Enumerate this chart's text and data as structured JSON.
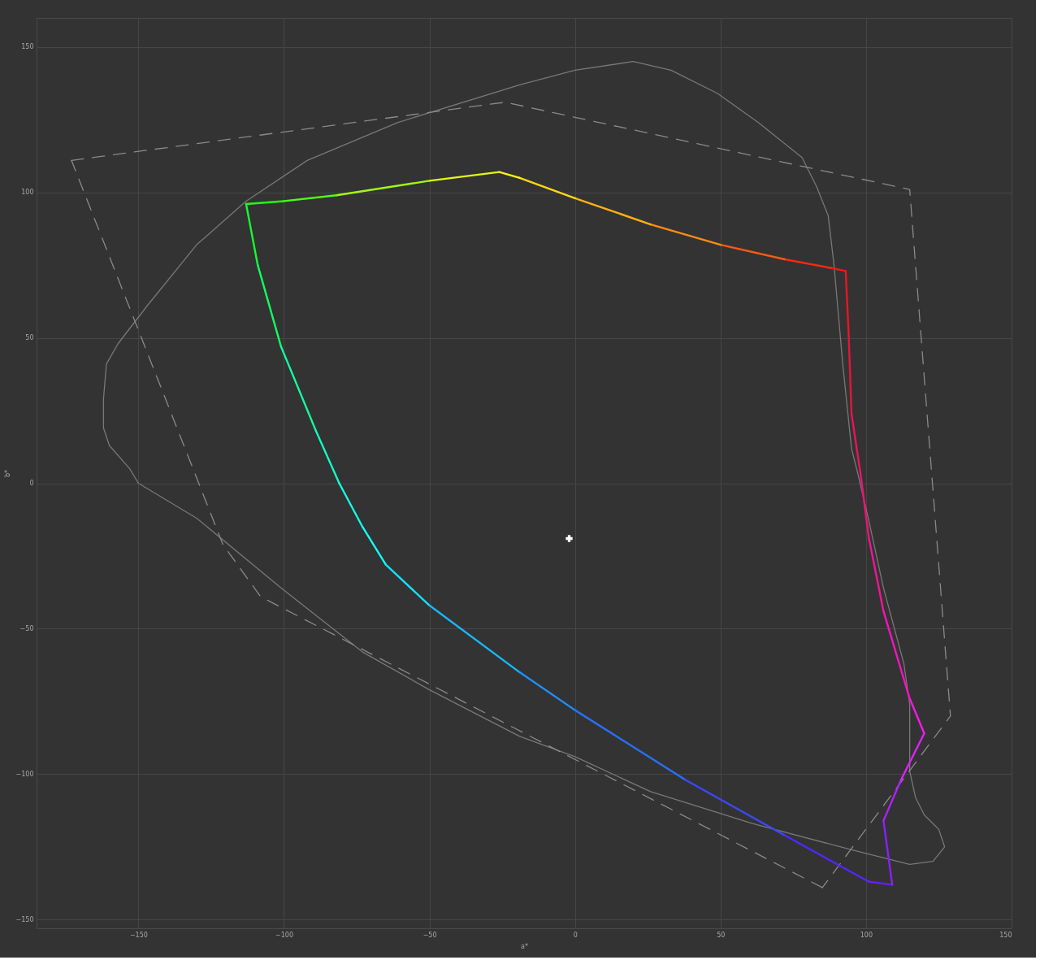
{
  "chart_data": {
    "type": "line",
    "xlabel": "a*",
    "ylabel": "b*",
    "xlim": [
      -185,
      150
    ],
    "ylim": [
      -153,
      160
    ],
    "xticks": [
      -150,
      -100,
      -50,
      0,
      50,
      100,
      150
    ],
    "yticks": [
      -150,
      -100,
      -50,
      0,
      50,
      100,
      150
    ],
    "grid": true,
    "series": [
      {
        "color": "#787878",
        "line_style": "solid",
        "x": [
          20,
          0,
          -19,
          -61,
          -92,
          -113,
          -130,
          -147,
          -157,
          -161,
          -162,
          -162,
          -160,
          -153,
          -150
        ],
        "values": [
          145,
          142,
          137,
          124,
          111,
          97,
          82,
          61,
          48,
          41,
          29,
          19,
          13,
          5,
          0
        ]
      },
      {
        "color": "#787878",
        "line_style": "solid",
        "x": [
          -150,
          -130,
          -101,
          -73,
          -50,
          -19,
          0,
          26,
          61,
          95,
          115,
          123,
          127,
          125,
          120,
          117,
          115,
          115,
          113,
          106,
          101,
          97,
          95,
          92,
          89,
          87,
          83,
          78,
          63,
          49,
          33,
          20
        ],
        "values": [
          0,
          -12,
          -36,
          -58,
          -71,
          -87,
          -94,
          -106,
          -117,
          -126,
          -131,
          -130,
          -125,
          -119,
          -114,
          -108,
          -99,
          -76,
          -62,
          -36,
          -13,
          4,
          12,
          41,
          75,
          92,
          102,
          112,
          124,
          134,
          142,
          145
        ]
      },
      {
        "color": "#8a8a8a",
        "line_style": "dashed",
        "x": [
          -173,
          -24,
          115,
          129,
          85
        ],
        "values": [
          111,
          131,
          101,
          -80,
          -139
        ]
      },
      {
        "color": "#8a8a8a",
        "line_style": "dashed",
        "x": [
          85,
          -108,
          -121,
          -173
        ],
        "values": [
          -139,
          -39,
          -21,
          111
        ]
      },
      {
        "color": "#f01818",
        "x": [
          93,
          88
        ],
        "values": [
          73,
          74
        ]
      },
      {
        "color": "#f42a14",
        "x": [
          88,
          72
        ],
        "values": [
          74,
          77
        ]
      },
      {
        "color": "#f85a14",
        "x": [
          72,
          50
        ],
        "values": [
          77,
          82
        ]
      },
      {
        "color": "#fc8c14",
        "x": [
          50,
          26
        ],
        "values": [
          82,
          89
        ]
      },
      {
        "color": "#ffb014",
        "x": [
          26,
          0
        ],
        "values": [
          89,
          98
        ]
      },
      {
        "color": "#ffd814",
        "x": [
          0,
          -19
        ],
        "values": [
          98,
          105
        ]
      },
      {
        "color": "#fff514",
        "x": [
          -19,
          -26
        ],
        "values": [
          105,
          107
        ]
      },
      {
        "color": "#e0f814",
        "x": [
          -26,
          -50
        ],
        "values": [
          107,
          104
        ]
      },
      {
        "color": "#a0fa14",
        "x": [
          -50,
          -82
        ],
        "values": [
          104,
          99
        ]
      },
      {
        "color": "#50fc14",
        "x": [
          -82,
          -100
        ],
        "values": [
          99,
          97
        ]
      },
      {
        "color": "#20fc14",
        "x": [
          -100,
          -113
        ],
        "values": [
          97,
          96
        ]
      },
      {
        "color": "#14fc30",
        "x": [
          -113,
          -109
        ],
        "values": [
          96,
          75
        ]
      },
      {
        "color": "#14fc60",
        "x": [
          -109,
          -101
        ],
        "values": [
          75,
          47
        ]
      },
      {
        "color": "#14fca0",
        "x": [
          -101,
          -89
        ],
        "values": [
          47,
          18
        ]
      },
      {
        "color": "#14fcc8",
        "x": [
          -89,
          -81
        ],
        "values": [
          18,
          0
        ]
      },
      {
        "color": "#14fce4",
        "x": [
          -81,
          -73
        ],
        "values": [
          0,
          -15
        ]
      },
      {
        "color": "#14fcf8",
        "x": [
          -73,
          -65
        ],
        "values": [
          -15,
          -28
        ]
      },
      {
        "color": "#14e0fc",
        "x": [
          -65,
          -50
        ],
        "values": [
          -28,
          -42
        ]
      },
      {
        "color": "#18b8fc",
        "x": [
          -50,
          -19
        ],
        "values": [
          -42,
          -65
        ]
      },
      {
        "color": "#1e90fc",
        "x": [
          -19,
          0
        ],
        "values": [
          -65,
          -78
        ]
      },
      {
        "color": "#2870fc",
        "x": [
          0,
          38
        ],
        "values": [
          -78,
          -102
        ]
      },
      {
        "color": "#3a48fc",
        "x": [
          38,
          72
        ],
        "values": [
          -102,
          -121
        ]
      },
      {
        "color": "#5028fc",
        "x": [
          72,
          101
        ],
        "values": [
          -121,
          -137
        ]
      },
      {
        "color": "#6a1cfc",
        "x": [
          101,
          109
        ],
        "values": [
          -137,
          -138
        ]
      },
      {
        "color": "#8a20fc",
        "x": [
          109,
          106
        ],
        "values": [
          -138,
          -116
        ]
      },
      {
        "color": "#b020fc",
        "x": [
          106,
          112
        ],
        "values": [
          -116,
          -102
        ]
      },
      {
        "color": "#e020fc",
        "x": [
          112,
          120
        ],
        "values": [
          -102,
          -86
        ]
      },
      {
        "color": "#f818e8",
        "x": [
          120,
          115
        ],
        "values": [
          -86,
          -74
        ]
      },
      {
        "color": "#f414c0",
        "x": [
          115,
          106
        ],
        "values": [
          -74,
          -44
        ]
      },
      {
        "color": "#f01498",
        "x": [
          106,
          101
        ],
        "values": [
          -44,
          -19
        ]
      },
      {
        "color": "#ec1474",
        "x": [
          101,
          98
        ],
        "values": [
          -19,
          4
        ]
      },
      {
        "color": "#ea1456",
        "x": [
          98,
          95
        ],
        "values": [
          4,
          24
        ]
      },
      {
        "color": "#e8143a",
        "x": [
          95,
          94
        ],
        "values": [
          24,
          52
        ]
      },
      {
        "color": "#ea1622",
        "x": [
          94,
          93
        ],
        "values": [
          52,
          73
        ]
      },
      {
        "type": "scatter",
        "color": "#ffffff",
        "marker": "cross",
        "x": [
          -2
        ],
        "values": [
          -19
        ]
      }
    ]
  }
}
